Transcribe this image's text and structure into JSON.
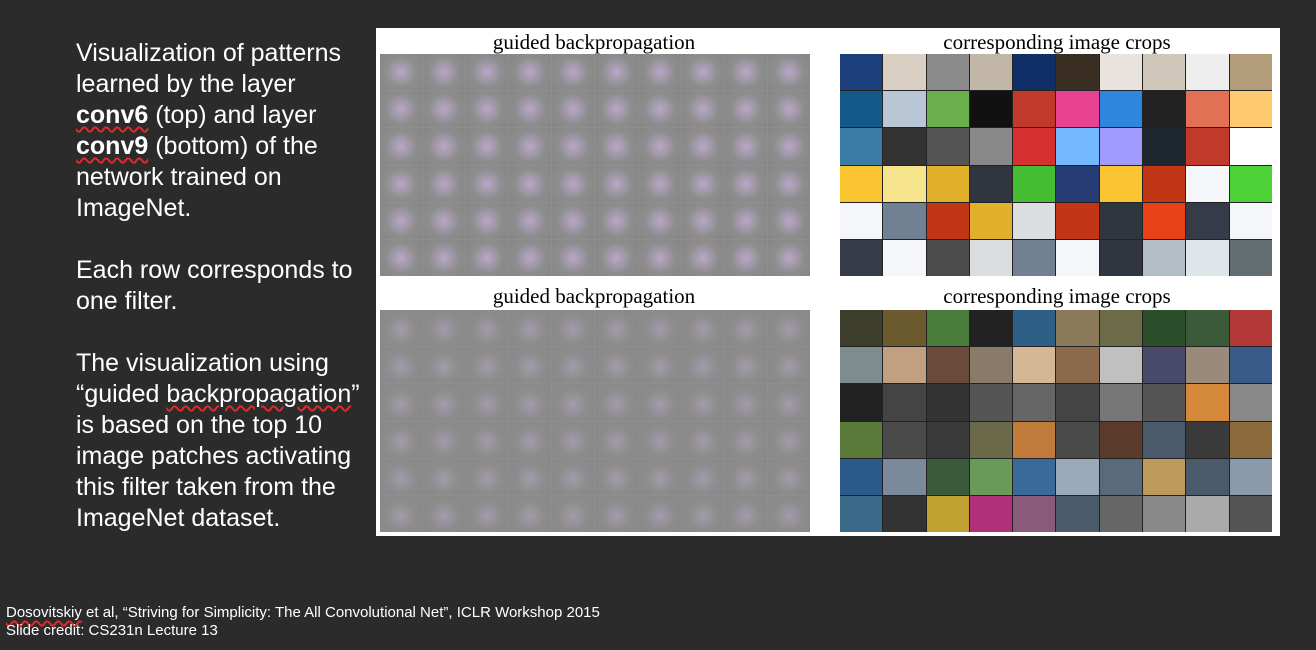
{
  "text": {
    "p1_pre": "Visualization of patterns learned by the layer ",
    "p1_conv6": "conv6",
    "p1_mid": " (top) and layer ",
    "p1_conv9": "conv9",
    "p1_post": " (bottom) of the network trained on ImageNet.",
    "p2": "Each row corresponds to one filter.",
    "p3_pre": "The visualization using “guided ",
    "p3_link": "backpropagation",
    "p3_post": "” is based on the top 10 image patches activating this filter taken from the ImageNet dataset."
  },
  "figure": {
    "top_left_title": "guided backpropagation",
    "top_right_title": "corresponding image crops",
    "bottom_left_title": "guided backpropagation",
    "bottom_right_title": "corresponding image crops",
    "rows": 6,
    "cols": 10,
    "crop_colors_top": [
      "#1a3f7a",
      "#d9d0c3",
      "#8a8a8a",
      "#c2b6a6",
      "#0f2f66",
      "#3a2d22",
      "#e8e4dd",
      "#d0c7bb",
      "#eee",
      "#b39c7a",
      "#135a8a",
      "#b8c6d6",
      "#6ab04c",
      "#111",
      "#c0392b",
      "#e84393",
      "#2e86de",
      "#222",
      "#e17055",
      "#fdcb6e",
      "#3a7ca5",
      "#333",
      "#555",
      "#888",
      "#d63031",
      "#74b9ff",
      "#a29bfe",
      "#1e272e",
      "#c0392b",
      "#ffffff",
      "#fbc531",
      "#f6e58d",
      "#e1b12c",
      "#2f3640",
      "#44bd32",
      "#273c75",
      "#fbc531",
      "#c23616",
      "#f5f6fa",
      "#4cd137",
      "#f5f6fa",
      "#718093",
      "#c23616",
      "#e1b12c",
      "#dcdde1",
      "#c23616",
      "#2f3640",
      "#e84118",
      "#353b48",
      "#f5f6fa",
      "#353b48",
      "#f5f6fa",
      "#4b4b4b",
      "#dcdde1",
      "#718093",
      "#f5f6fa",
      "#2f3640",
      "#b2bec3",
      "#dfe6e9",
      "#636e72"
    ],
    "crop_colors_bottom": [
      "#3d3d2b",
      "#6b5a2e",
      "#4a7d3a",
      "#222",
      "#2d5f87",
      "#8a7a5a",
      "#6b6b4a",
      "#2a4f2a",
      "#3a5a3a",
      "#b33939",
      "#7f8c8d",
      "#c0a080",
      "#6a4a3a",
      "#8a7a6a",
      "#d4b896",
      "#8a6a4a",
      "#c0c0c0",
      "#4a4a6a",
      "#9a8a7a",
      "#3a5a8a",
      "#222",
      "#444",
      "#333",
      "#555",
      "#666",
      "#444",
      "#777",
      "#555",
      "#d4883a",
      "#888",
      "#5a7a3a",
      "#4a4a4a",
      "#3a3a3a",
      "#6a6a4a",
      "#c07a3a",
      "#4a4a4a",
      "#5a3a2a",
      "#4a5a6a",
      "#3a3a3a",
      "#8a6a3a",
      "#2a5a8a",
      "#7a8a9a",
      "#3a5a3a",
      "#6a9a5a",
      "#3a6a9a",
      "#9aaabb",
      "#5a6a7a",
      "#bb9a5a",
      "#4a5a6a",
      "#8a9aaa",
      "#3a6a8a",
      "#333",
      "#c0a030",
      "#b0307a",
      "#8a5a7a",
      "#4a5a6a",
      "#666",
      "#888",
      "#aaa",
      "#555"
    ]
  },
  "footer": {
    "citation_author": "Dosovitskiy",
    "citation_rest": " et al, “Striving for Simplicity: The All Convolutional Net”, ICLR Workshop 2015",
    "credit": "Slide credit: CS231n Lecture 13"
  }
}
